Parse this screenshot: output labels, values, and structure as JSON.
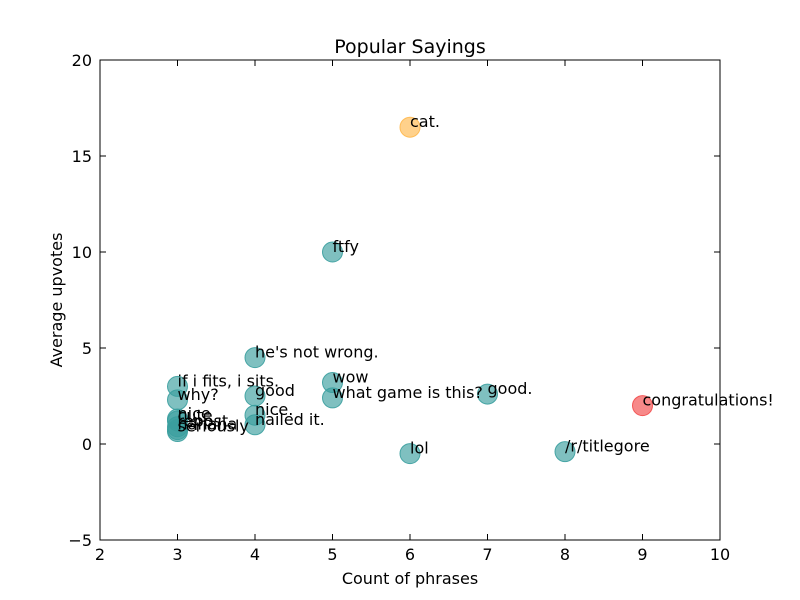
{
  "chart_data": {
    "type": "scatter",
    "title": "Popular Sayings",
    "xlabel": "Count of phrases",
    "ylabel": "Average upvotes",
    "xlim": [
      2,
      10
    ],
    "ylim": [
      -5,
      20
    ],
    "xticks": [
      2,
      3,
      4,
      5,
      6,
      7,
      8,
      9,
      10
    ],
    "yticks": [
      -5,
      0,
      5,
      10,
      15,
      20
    ],
    "grid": false,
    "colors": {
      "default": "#3a9e9e",
      "highlight_orange": "#ffb84d",
      "highlight_red": "#f24a4a"
    },
    "points": [
      {
        "label": "cat.",
        "x": 6,
        "y": 16.5,
        "color": "#ffb84d"
      },
      {
        "label": "ftfy",
        "x": 5,
        "y": 10.0,
        "color": "#3a9e9e"
      },
      {
        "label": "he's not wrong.",
        "x": 4,
        "y": 4.5,
        "color": "#3a9e9e"
      },
      {
        "label": "if i fits, i sits.",
        "x": 3,
        "y": 3.0,
        "color": "#3a9e9e"
      },
      {
        "label": "wow",
        "x": 5,
        "y": 3.2,
        "color": "#3a9e9e"
      },
      {
        "label": "why?",
        "x": 3,
        "y": 2.3,
        "color": "#3a9e9e"
      },
      {
        "label": "good",
        "x": 4,
        "y": 2.5,
        "color": "#3a9e9e"
      },
      {
        "label": "what game is this?",
        "x": 5,
        "y": 2.4,
        "color": "#3a9e9e"
      },
      {
        "label": "good.",
        "x": 7,
        "y": 2.6,
        "color": "#3a9e9e"
      },
      {
        "label": "congratulations!",
        "x": 9,
        "y": 2.0,
        "color": "#f24a4a"
      },
      {
        "label": "nice.",
        "x": 4,
        "y": 1.5,
        "color": "#3a9e9e"
      },
      {
        "label": "nice",
        "x": 3,
        "y": 1.3,
        "color": "#3a9e9e"
      },
      {
        "label": "cute",
        "x": 3,
        "y": 1.2,
        "color": "#3a9e9e"
      },
      {
        "label": "repost",
        "x": 3,
        "y": 0.9,
        "color": "#3a9e9e"
      },
      {
        "label": "hahaha",
        "x": 3,
        "y": 0.75,
        "color": "#3a9e9e"
      },
      {
        "label": "seriously",
        "x": 3,
        "y": 0.65,
        "color": "#3a9e9e"
      },
      {
        "label": "nailed it.",
        "x": 4,
        "y": 1.0,
        "color": "#3a9e9e"
      },
      {
        "label": "lol",
        "x": 6,
        "y": -0.5,
        "color": "#3a9e9e"
      },
      {
        "label": "/r/titlegore",
        "x": 8,
        "y": -0.4,
        "color": "#3a9e9e"
      }
    ]
  }
}
